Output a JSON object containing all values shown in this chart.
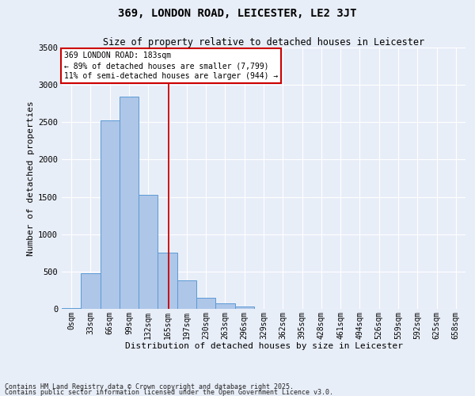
{
  "title1": "369, LONDON ROAD, LEICESTER, LE2 3JT",
  "title2": "Size of property relative to detached houses in Leicester",
  "xlabel": "Distribution of detached houses by size in Leicester",
  "ylabel": "Number of detached properties",
  "bar_labels": [
    "0sqm",
    "33sqm",
    "66sqm",
    "99sqm",
    "132sqm",
    "165sqm",
    "197sqm",
    "230sqm",
    "263sqm",
    "296sqm",
    "329sqm",
    "362sqm",
    "395sqm",
    "428sqm",
    "461sqm",
    "494sqm",
    "526sqm",
    "559sqm",
    "592sqm",
    "625sqm",
    "658sqm"
  ],
  "bar_values": [
    15,
    480,
    2520,
    2840,
    1530,
    750,
    380,
    145,
    75,
    35,
    5,
    0,
    0,
    0,
    0,
    0,
    0,
    0,
    0,
    0,
    0
  ],
  "bar_color": "#aec6e8",
  "bar_edge_color": "#5b9bd5",
  "vline_color": "#cc0000",
  "ylim": [
    0,
    3500
  ],
  "yticks": [
    0,
    500,
    1000,
    1500,
    2000,
    2500,
    3000,
    3500
  ],
  "annotation_text": "369 LONDON ROAD: 183sqm\n← 89% of detached houses are smaller (7,799)\n11% of semi-detached houses are larger (944) →",
  "annotation_box_color": "#ffffff",
  "annotation_box_edge": "#cc0000",
  "footer1": "Contains HM Land Registry data © Crown copyright and database right 2025.",
  "footer2": "Contains public sector information licensed under the Open Government Licence v3.0.",
  "background_color": "#e8eef8",
  "grid_color": "#ffffff",
  "title1_fontsize": 10,
  "title2_fontsize": 8.5,
  "xlabel_fontsize": 8,
  "ylabel_fontsize": 8,
  "tick_fontsize": 7,
  "annot_fontsize": 7,
  "footer_fontsize": 6
}
